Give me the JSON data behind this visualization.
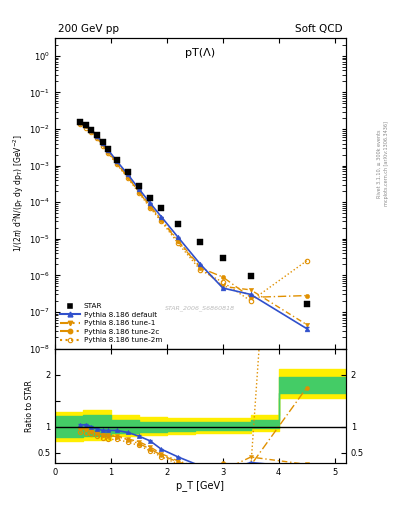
{
  "title_left": "200 GeV pp",
  "title_right": "Soft QCD",
  "plot_title": "pT(Λ)",
  "ylabel_main": "1/(2π) d²N/(p_T dy dp_T) [GeV⁻²]",
  "ylabel_ratio": "Ratio to STAR",
  "xlabel": "p_T [GeV]",
  "watermark": "STAR_2006_S6860818",
  "right_label_top": "Rivet 3.1.10, ≥ 300k events",
  "right_label_bot": "mcplots.cern.ch [arXiv:1306.3436]",
  "star_x": [
    0.45,
    0.55,
    0.65,
    0.75,
    0.85,
    0.95,
    1.1,
    1.3,
    1.5,
    1.7,
    1.9,
    2.2,
    2.6,
    3.0,
    3.5,
    4.5
  ],
  "star_y": [
    0.0155,
    0.0125,
    0.0095,
    0.0068,
    0.0045,
    0.0029,
    0.00145,
    0.00065,
    0.00028,
    0.00013,
    7e-05,
    2.6e-05,
    8e-06,
    3e-06,
    9.5e-07,
    1.6e-07
  ],
  "def_x": [
    0.45,
    0.55,
    0.65,
    0.75,
    0.85,
    0.95,
    1.1,
    1.3,
    1.5,
    1.7,
    1.9,
    2.2,
    2.6,
    3.0,
    3.5,
    4.5
  ],
  "def_y": [
    0.016,
    0.013,
    0.0095,
    0.0065,
    0.0042,
    0.0027,
    0.00135,
    0.00058,
    0.00023,
    9.5e-05,
    4e-05,
    1.1e-05,
    2e-06,
    4.5e-07,
    3e-07,
    3.5e-08
  ],
  "def_yerr": [
    0.0002,
    0.00015,
    0.00012,
    9e-05,
    6e-05,
    4e-05,
    2e-05,
    8e-06,
    3.5e-06,
    1.5e-06,
    6e-07,
    2e-07,
    4e-08,
    1.5e-08,
    1.5e-08,
    3e-09
  ],
  "t1_x": [
    0.45,
    0.55,
    0.65,
    0.75,
    0.85,
    0.95,
    1.1,
    1.3,
    1.5,
    1.7,
    1.9,
    2.2,
    2.6,
    3.0,
    3.5,
    4.5
  ],
  "t1_y": [
    0.015,
    0.012,
    0.0088,
    0.006,
    0.0038,
    0.00245,
    0.0012,
    0.0005,
    0.0002,
    8e-05,
    3.4e-05,
    9e-06,
    1.7e-06,
    5e-07,
    4e-07,
    4.5e-08
  ],
  "t2c_x": [
    0.45,
    0.55,
    0.65,
    0.75,
    0.85,
    0.95,
    1.1,
    1.3,
    1.5,
    1.7,
    1.9,
    2.2,
    2.6,
    3.0,
    3.5,
    4.5
  ],
  "t2c_y": [
    0.015,
    0.012,
    0.0088,
    0.006,
    0.0038,
    0.0024,
    0.00118,
    0.00049,
    0.00019,
    7.5e-05,
    3.2e-05,
    8.5e-06,
    1.6e-06,
    9e-07,
    2.5e-07,
    2.8e-07
  ],
  "t2m_x": [
    0.45,
    0.55,
    0.65,
    0.75,
    0.85,
    0.95,
    1.1,
    1.3,
    1.5,
    1.7,
    1.9,
    2.2,
    2.6,
    3.0,
    3.5,
    4.5
  ],
  "t2m_y": [
    0.014,
    0.011,
    0.0082,
    0.0056,
    0.0035,
    0.0022,
    0.0011,
    0.00046,
    0.00018,
    7e-05,
    3e-05,
    7.5e-06,
    1.4e-06,
    6.5e-07,
    2e-07,
    2.5e-06
  ],
  "color_blue": "#3050cc",
  "color_orange": "#e09000",
  "xlim": [
    0.0,
    5.2
  ],
  "ylim_main": [
    1e-08,
    3
  ],
  "ylim_ratio": [
    0.3,
    2.5
  ],
  "band_yellow_x": [
    0.0,
    0.5,
    1.0,
    1.5,
    2.0,
    2.5,
    3.0,
    3.5,
    4.0,
    5.2
  ],
  "band_yellow_lo": [
    0.72,
    0.75,
    0.82,
    0.85,
    0.87,
    0.88,
    0.89,
    0.92,
    1.55,
    1.55
  ],
  "band_yellow_hi": [
    1.28,
    1.32,
    1.22,
    1.18,
    1.16,
    1.16,
    1.17,
    1.22,
    2.1,
    2.1
  ],
  "band_green_x": [
    0.0,
    0.5,
    1.0,
    1.5,
    2.0,
    2.5,
    3.0,
    3.5,
    4.0,
    5.2
  ],
  "band_green_lo": [
    0.8,
    0.83,
    0.88,
    0.9,
    0.92,
    0.93,
    0.94,
    0.97,
    1.65,
    1.65
  ],
  "band_green_hi": [
    1.2,
    1.22,
    1.14,
    1.1,
    1.09,
    1.09,
    1.1,
    1.14,
    1.95,
    1.95
  ]
}
